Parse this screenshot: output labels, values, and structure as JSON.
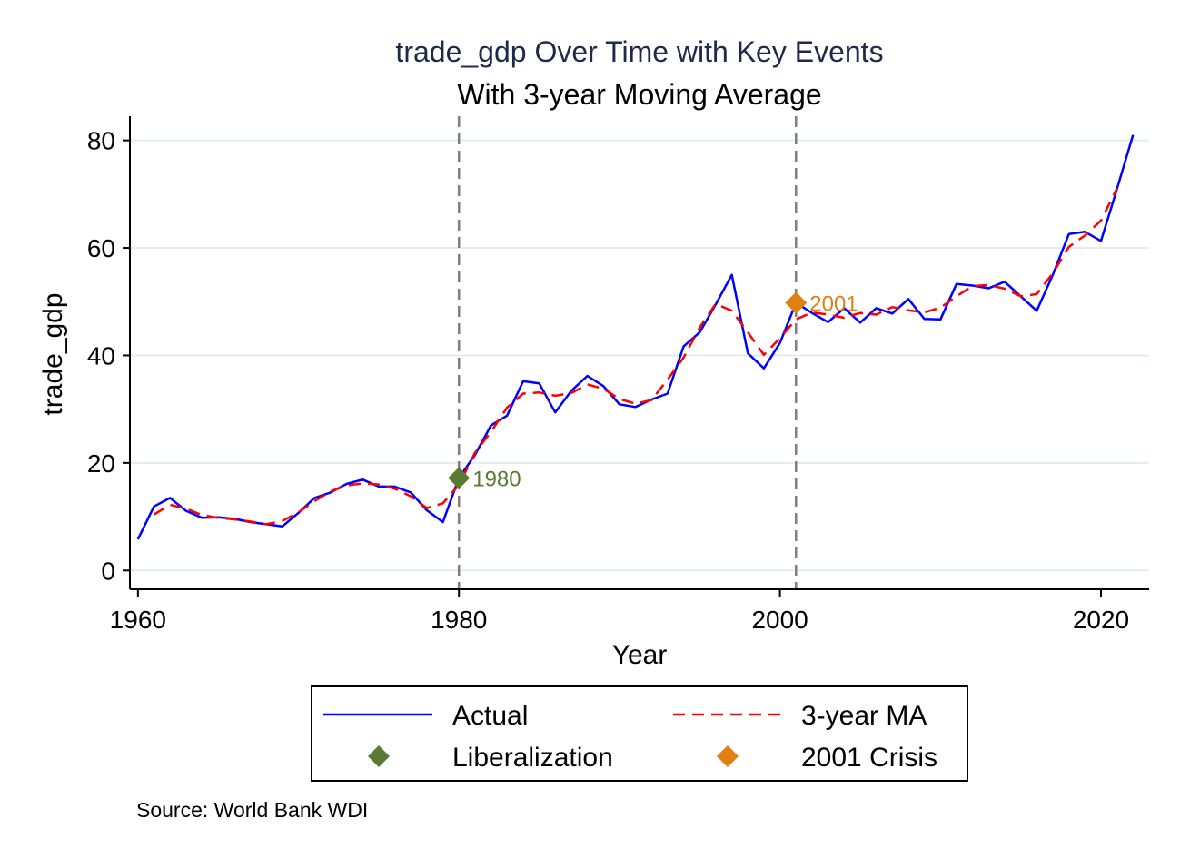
{
  "chart_data": {
    "type": "line",
    "title": "trade_gdp Over Time with Key Events",
    "subtitle": "With 3-year Moving Average",
    "xlabel": "Year",
    "ylabel": "trade_gdp",
    "xlim": [
      1959.5,
      2023
    ],
    "ylim": [
      -3.5,
      84.5
    ],
    "xticks": [
      1960,
      1980,
      2000,
      2020
    ],
    "yticks": [
      0,
      20,
      40,
      60,
      80
    ],
    "grid": true,
    "legend_position": "bottom",
    "note": "Source: World Bank WDI",
    "x": [
      1960,
      1961,
      1962,
      1963,
      1964,
      1965,
      1966,
      1967,
      1968,
      1969,
      1970,
      1971,
      1972,
      1973,
      1974,
      1975,
      1976,
      1977,
      1978,
      1979,
      1980,
      1981,
      1982,
      1983,
      1984,
      1985,
      1986,
      1987,
      1988,
      1989,
      1990,
      1991,
      1992,
      1993,
      1994,
      1995,
      1996,
      1997,
      1998,
      1999,
      2000,
      2001,
      2002,
      2003,
      2004,
      2005,
      2006,
      2007,
      2008,
      2009,
      2010,
      2011,
      2012,
      2013,
      2014,
      2015,
      2016,
      2017,
      2018,
      2019,
      2020,
      2021,
      2022
    ],
    "series": [
      {
        "name": "Actual",
        "color": "#0000ff",
        "style": "solid",
        "values": [
          5.8,
          11.9,
          13.5,
          11.1,
          9.8,
          9.9,
          9.6,
          9.0,
          8.6,
          8.2,
          10.7,
          13.5,
          14.5,
          16.1,
          16.9,
          15.6,
          15.6,
          14.5,
          11.2,
          9.0,
          17.2,
          21.5,
          27.0,
          28.8,
          35.2,
          34.8,
          29.4,
          33.4,
          36.2,
          34.3,
          30.9,
          30.4,
          31.8,
          32.9,
          41.7,
          44.3,
          49.5,
          55.0,
          40.4,
          37.6,
          42.3,
          49.8,
          47.9,
          46.2,
          48.8,
          46.1,
          48.8,
          47.8,
          50.5,
          46.8,
          46.7,
          53.3,
          53.0,
          52.5,
          53.7,
          51.0,
          48.3,
          55.0,
          62.6,
          63.0,
          61.3,
          71.0,
          81.0
        ]
      },
      {
        "name": "3-year MA",
        "color": "#ff0000",
        "style": "dashed",
        "values": [
          null,
          10.4,
          12.2,
          11.5,
          10.3,
          9.8,
          9.5,
          9.1,
          8.6,
          9.2,
          10.8,
          12.9,
          14.7,
          15.8,
          16.2,
          16.0,
          15.2,
          13.8,
          11.6,
          12.5,
          15.9,
          21.9,
          25.8,
          30.3,
          32.9,
          33.1,
          32.5,
          33.0,
          34.6,
          33.8,
          31.9,
          31.0,
          31.7,
          35.5,
          39.6,
          45.2,
          49.6,
          48.3,
          44.3,
          40.1,
          43.2,
          46.7,
          48.0,
          47.6,
          47.0,
          47.9,
          47.6,
          49.0,
          48.4,
          48.0,
          48.9,
          51.0,
          52.9,
          53.1,
          52.4,
          51.0,
          51.4,
          55.3,
          60.2,
          62.3,
          65.1,
          71.1,
          null
        ]
      }
    ],
    "events": [
      {
        "name": "Liberalization",
        "year": 1980,
        "value": 17.2,
        "label": "1980",
        "color": "#5a7a32"
      },
      {
        "name": "2001 Crisis",
        "year": 2001,
        "value": 49.8,
        "label": "2001",
        "color": "#e08010"
      }
    ]
  }
}
